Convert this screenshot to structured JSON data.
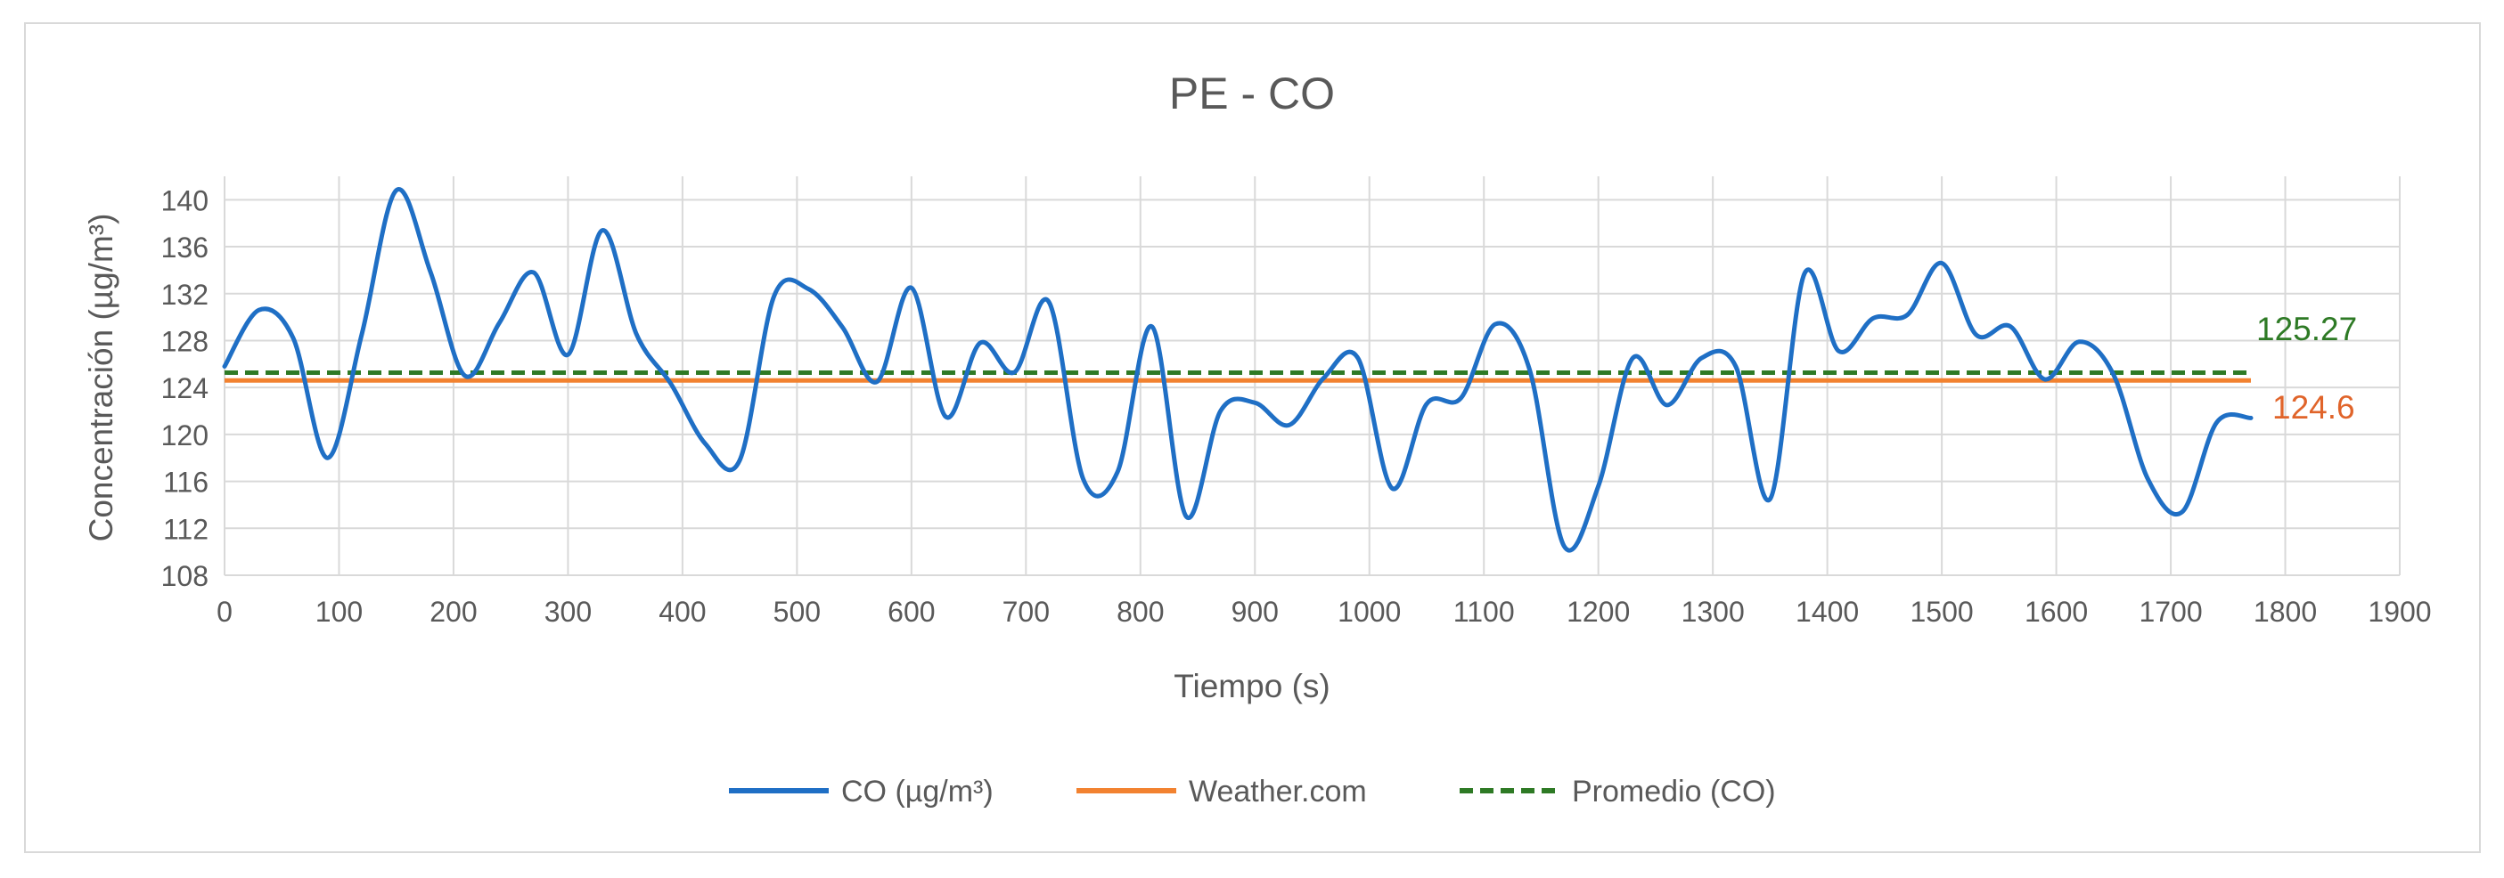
{
  "chart_data": {
    "type": "line",
    "title": "PE - CO",
    "xlabel": "Tiempo (s)",
    "ylabel": "Concentración (µg/m³)",
    "xlim": [
      0,
      1900
    ],
    "ylim": [
      108,
      142
    ],
    "xticks": [
      0,
      100,
      200,
      300,
      400,
      500,
      600,
      700,
      800,
      900,
      1000,
      1100,
      1200,
      1300,
      1400,
      1500,
      1600,
      1700,
      1800,
      1900
    ],
    "yticks": [
      108,
      112,
      116,
      120,
      124,
      128,
      132,
      136,
      140
    ],
    "grid": true,
    "legend_position": "bottom",
    "series": [
      {
        "name": "CO (µg/m³)",
        "color": "#1f6fc5",
        "style": "solid",
        "x": [
          0,
          30,
          60,
          90,
          120,
          150,
          180,
          210,
          240,
          270,
          300,
          330,
          360,
          390,
          420,
          450,
          480,
          510,
          540,
          570,
          600,
          630,
          660,
          690,
          720,
          750,
          780,
          810,
          840,
          870,
          900,
          930,
          960,
          990,
          1020,
          1050,
          1080,
          1110,
          1140,
          1170,
          1200,
          1230,
          1260,
          1290,
          1320,
          1350,
          1380,
          1410,
          1440,
          1470,
          1500,
          1530,
          1560,
          1590,
          1620,
          1650,
          1680,
          1710,
          1740,
          1770
        ],
        "values": [
          125.8,
          130.6,
          128.2,
          118,
          128.6,
          140.8,
          133.8,
          125,
          129.5,
          133.8,
          126.8,
          137.4,
          128.5,
          124.3,
          119.2,
          117.8,
          131.8,
          132.4,
          129.1,
          124.5,
          132.5,
          121.5,
          127.8,
          125.3,
          131.3,
          116.2,
          116.8,
          129.2,
          113,
          122,
          122.7,
          120.8,
          124.8,
          126.5,
          115.4,
          122.6,
          123.1,
          129.4,
          125.5,
          110.5,
          115.6,
          126.5,
          122.5,
          126.5,
          125.8,
          114.5,
          133.7,
          127.1,
          129.9,
          130.2,
          134.6,
          128.5,
          129.2,
          124.7,
          127.9,
          125.1,
          116.2,
          113.4,
          121,
          121.4
        ]
      },
      {
        "name": "Weather.com",
        "color": "#f28230",
        "style": "solid",
        "x": [
          0,
          1770
        ],
        "values": [
          124.6,
          124.6
        ]
      },
      {
        "name": "Promedio (CO)",
        "color": "#2e7a25",
        "style": "dashed",
        "x": [
          0,
          1770
        ],
        "values": [
          125.27,
          125.27
        ]
      }
    ],
    "annotations": [
      {
        "text": "125.27",
        "value": 125.27,
        "color": "#2e7a25"
      },
      {
        "text": "124.6",
        "value": 124.6,
        "color": "#e0642a"
      }
    ]
  }
}
